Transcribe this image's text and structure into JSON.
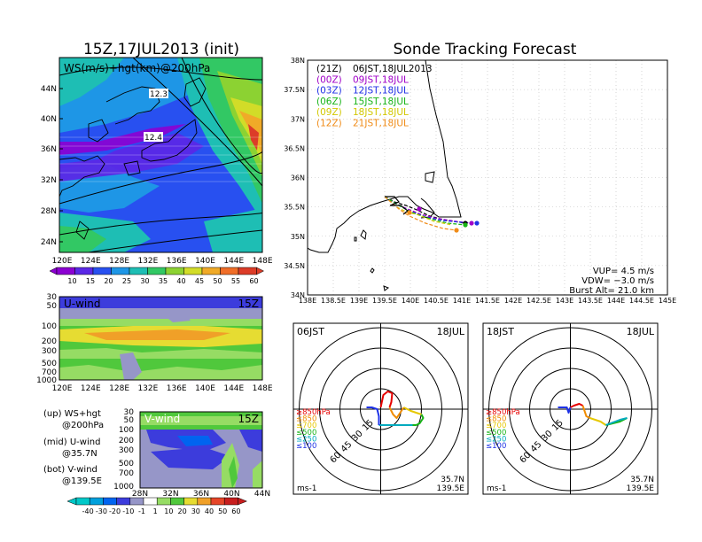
{
  "left": {
    "title": "15Z,17JUL2013 (init)",
    "map": {
      "label": "WS(m/s)+hgt(km)@200hPa",
      "lat_ticks": [
        "44N",
        "40N",
        "36N",
        "32N",
        "28N",
        "24N"
      ],
      "lon_ticks": [
        "120E",
        "124E",
        "128E",
        "132E",
        "136E",
        "140E",
        "144E",
        "148E"
      ],
      "contour_labels": [
        "12.3",
        "12.4"
      ]
    },
    "ws_colorbar": [
      "10",
      "15",
      "20",
      "25",
      "30",
      "35",
      "40",
      "45",
      "50",
      "55",
      "60"
    ],
    "uwind": {
      "label": "U-wind",
      "time": "15Z",
      "p_ticks": [
        "30",
        "50",
        "100",
        "200",
        "300",
        "500",
        "700",
        "1000"
      ],
      "lon_ticks": [
        "120E",
        "124E",
        "128E",
        "132E",
        "136E",
        "140E",
        "144E",
        "148E"
      ]
    },
    "vwind": {
      "label": "V-wind",
      "time": "15Z",
      "p_ticks": [
        "30",
        "50",
        "100",
        "200",
        "300",
        "500",
        "700",
        "1000"
      ],
      "lat_ticks": [
        "28N",
        "32N",
        "36N",
        "40N",
        "44N"
      ]
    },
    "legend_notes": [
      {
        "line1": "(up) WS+hgt",
        "line2": "@200hPa"
      },
      {
        "line1": "(mid) U-wind",
        "line2": "@35.7N"
      },
      {
        "line1": "(bot) V-wind",
        "line2": "@139.5E"
      }
    ],
    "wind_colorbar": [
      "-40",
      "-30",
      "-20",
      "-10",
      "-1",
      "1",
      "10",
      "20",
      "30",
      "40",
      "50",
      "60"
    ]
  },
  "right": {
    "title": "Sonde Tracking Forecast",
    "legend": [
      {
        "time": "(21Z)",
        "jst": "06JST,18JUL2013",
        "color": "#000000"
      },
      {
        "time": "(00Z)",
        "jst": "09JST,18JUL",
        "color": "#a000c8"
      },
      {
        "time": "(03Z)",
        "jst": "12JST,18JUL",
        "color": "#2030e6"
      },
      {
        "time": "(06Z)",
        "jst": "15JST,18JUL",
        "color": "#18b418"
      },
      {
        "time": "(09Z)",
        "jst": "18JST,18JUL",
        "color": "#d2c800"
      },
      {
        "time": "(12Z)",
        "jst": "21JST,18JUL",
        "color": "#f08c18"
      }
    ],
    "lat_ticks": [
      "38N",
      "37.5N",
      "37N",
      "36.5N",
      "36N",
      "35.5N",
      "35N",
      "34.5N",
      "34N"
    ],
    "lon_ticks": [
      "138E",
      "138.5E",
      "139E",
      "139.5E",
      "140E",
      "140.5E",
      "141E",
      "141.5E",
      "142E",
      "142.5E",
      "143E",
      "143.5E",
      "144E",
      "144.5E",
      "145E"
    ],
    "info": {
      "vup": "VUP= 4.5 m/s",
      "vdw": "VDW= −3.0 m/s",
      "burst": "Burst Alt= 21.0 km"
    }
  },
  "hodographs": [
    {
      "time": "06JST",
      "date": "18JUL",
      "ring_labels": [
        "15",
        "30",
        "45",
        "60"
      ],
      "levels": [
        "≥850hPa",
        "≤850",
        "≤700",
        "≤500",
        "≤250",
        "≤100"
      ],
      "unit": "ms-1",
      "lat": "35.7N",
      "lon": "139.5E"
    },
    {
      "time": "18JST",
      "date": "18JUL",
      "ring_labels": [
        "15",
        "30",
        "45",
        "60"
      ],
      "levels": [
        "≥850hPa",
        "≤850",
        "≤700",
        "≤500",
        "≤250",
        "≤100"
      ],
      "unit": "ms-1",
      "lat": "35.7N",
      "lon": "139.5E"
    }
  ],
  "colors": {
    "ws_scale": [
      "#8c00d2",
      "#5a28e6",
      "#2850f0",
      "#1e96e6",
      "#1ebeb4",
      "#32c864",
      "#8cd232",
      "#d2dc28",
      "#f0aa28",
      "#f06e28",
      "#dc3c28"
    ],
    "wind_scale": [
      "#00c8c8",
      "#00a0dc",
      "#0064f0",
      "#3c3cdc",
      "#9696c8",
      "#ffffff",
      "#96dc64",
      "#50c83c",
      "#e6dc32",
      "#f0a028",
      "#e64628",
      "#c81e1e"
    ],
    "level_colors": [
      "#e60000",
      "#f08c00",
      "#e6c800",
      "#18b418",
      "#00aabe",
      "#1e32e6"
    ]
  }
}
